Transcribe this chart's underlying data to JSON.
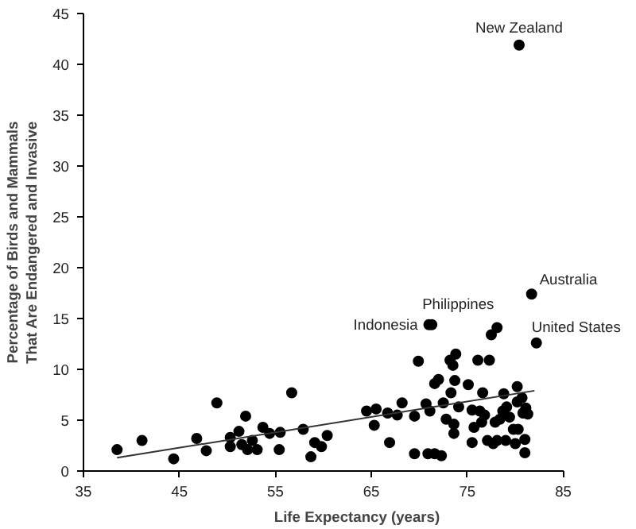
{
  "chart_data": {
    "type": "scatter",
    "xlabel": "Life Expectancy (years)",
    "ylabel": "Percentage of Birds and Mammals That Are Endangered and Invasive",
    "xlim": [
      35,
      85
    ],
    "xticks": [
      35,
      45,
      55,
      65,
      75,
      85
    ],
    "ylim": [
      0,
      45
    ],
    "yticks": [
      0,
      5,
      10,
      15,
      20,
      25,
      30,
      35,
      40,
      45
    ],
    "grid": false,
    "series": [
      {
        "marker": "circle",
        "color": "#000000",
        "x": [
          38.5,
          41.1,
          44.4,
          46.8,
          47.8,
          48.9,
          50.3,
          50.3,
          51.2,
          51.5,
          51.9,
          52.1,
          52.6,
          53.1,
          53.7,
          54.4,
          55.4,
          55.5,
          56.7,
          57.9,
          58.7,
          59.1,
          59.8,
          60.4,
          64.5,
          65.5,
          65.3,
          66.7,
          66.9,
          67.7,
          68.2,
          69.5,
          69.5,
          69.9,
          70.7,
          70.9,
          71.0,
          71.3,
          71.1,
          71.6,
          71.6,
          72.0,
          72.3,
          72.5,
          72.8,
          73.2,
          73.5,
          73.7,
          73.8,
          73.3,
          73.6,
          73.6,
          74.1,
          75.1,
          75.5,
          75.5,
          75.7,
          76.1,
          76.3,
          76.5,
          76.6,
          76.8,
          77.1,
          77.3,
          77.5,
          78.1,
          77.7,
          77.9,
          78.1,
          78.4,
          78.7,
          78.8,
          79.0,
          79.1,
          79.4,
          79.8,
          80.0,
          80.2,
          80.2,
          80.4,
          80.3,
          80.8,
          81.0,
          81.0,
          81.1,
          81.3,
          81.7,
          82.2,
          80.7
        ],
        "values": [
          2.1,
          3.0,
          1.2,
          3.2,
          2.0,
          6.7,
          3.3,
          2.4,
          3.9,
          2.6,
          5.4,
          2.1,
          3.0,
          2.1,
          4.3,
          3.7,
          2.1,
          3.8,
          7.7,
          4.1,
          1.4,
          2.8,
          2.4,
          3.5,
          5.9,
          6.1,
          4.5,
          5.7,
          2.8,
          5.5,
          6.7,
          1.7,
          5.4,
          10.8,
          6.6,
          1.7,
          14.4,
          14.4,
          5.9,
          1.7,
          8.6,
          9.0,
          1.5,
          6.7,
          5.1,
          10.9,
          10.4,
          8.9,
          11.5,
          7.7,
          4.6,
          3.7,
          6.3,
          8.5,
          2.8,
          6.0,
          4.3,
          10.9,
          5.9,
          4.8,
          7.7,
          5.5,
          3.0,
          10.9,
          13.4,
          14.1,
          2.7,
          4.8,
          3.0,
          5.1,
          5.9,
          7.6,
          3.0,
          6.3,
          5.3,
          4.1,
          2.7,
          6.8,
          8.3,
          41.9,
          4.1,
          5.7,
          3.1,
          1.8,
          6.2,
          5.6,
          17.4,
          12.6,
          7.2
        ]
      },
      {
        "type": "line",
        "color": "#333333",
        "x": [
          38.5,
          82.0
        ],
        "values": [
          1.3,
          7.9
        ],
        "line_style": "solid"
      }
    ],
    "annotations": [
      {
        "text": "New Zealand",
        "x": 80.4,
        "y": 41.9
      },
      {
        "text": "Australia",
        "x": 81.7,
        "y": 17.4
      },
      {
        "text": "Philippines",
        "x": 71.3,
        "y": 14.4
      },
      {
        "text": "Indonesia",
        "x": 71.0,
        "y": 14.4
      },
      {
        "text": "United States",
        "x": 82.2,
        "y": 12.6
      }
    ]
  }
}
